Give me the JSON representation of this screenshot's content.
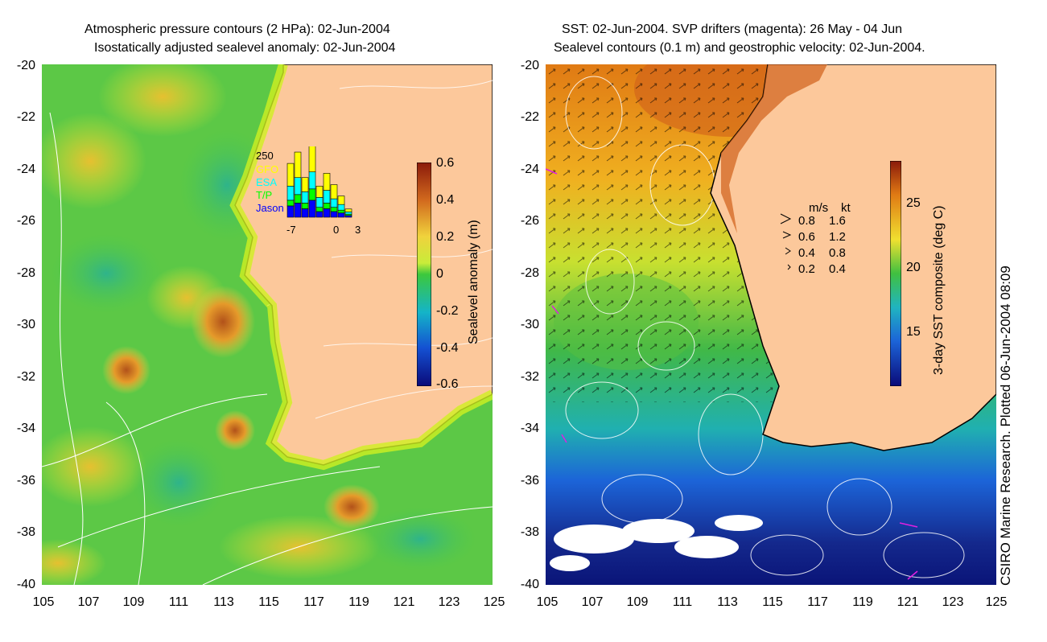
{
  "left_panel": {
    "title_line1": "Atmospheric pressure contours (2 HPa): 02-Jun-2004",
    "title_line2": "Isostatically adjusted sealevel anomaly: 02-Jun-2004",
    "y_ticks": [
      "-20",
      "-22",
      "-24",
      "-26",
      "-28",
      "-30",
      "-32",
      "-34",
      "-36",
      "-38",
      "-40"
    ],
    "x_ticks": [
      "105",
      "107",
      "109",
      "111",
      "113",
      "115",
      "117",
      "119",
      "121",
      "123",
      "125"
    ],
    "colorbar": {
      "label": "Sealevel anomaly (m)",
      "ticks": [
        "0.6",
        "0.4",
        "0.2",
        "0",
        "-0.2",
        "-0.4",
        "-0.6"
      ]
    },
    "inset": {
      "ymax_label": "250",
      "legend": [
        "GFO",
        "ESA",
        "T/P",
        "Jason"
      ],
      "legend_colors": [
        "#ffff00",
        "#00ffff",
        "#00ff00",
        "#0000ff"
      ],
      "x_ticks": [
        "-7",
        "0",
        "3"
      ],
      "stacks": [
        [
          80,
          50,
          20,
          40
        ],
        [
          90,
          60,
          30,
          50
        ],
        [
          50,
          40,
          20,
          30
        ],
        [
          100,
          60,
          40,
          60
        ],
        [
          40,
          35,
          15,
          20
        ],
        [
          60,
          45,
          20,
          30
        ],
        [
          50,
          30,
          15,
          20
        ],
        [
          30,
          20,
          10,
          15
        ],
        [
          10,
          8,
          5,
          6
        ]
      ]
    }
  },
  "right_panel": {
    "title_line1": "SST: 02-Jun-2004. SVP drifters (magenta): 26 May - 04 Jun",
    "title_line2": "Sealevel contours (0.1 m) and geostrophic velocity: 02-Jun-2004.",
    "y_ticks": [
      "-20",
      "-22",
      "-24",
      "-26",
      "-28",
      "-30",
      "-32",
      "-34",
      "-36",
      "-38",
      "-40"
    ],
    "x_ticks": [
      "105",
      "107",
      "109",
      "111",
      "113",
      "115",
      "117",
      "119",
      "121",
      "123",
      "125"
    ],
    "colorbar": {
      "label": "3-day SST composite (deg C)",
      "ticks": [
        "25",
        "20",
        "15"
      ]
    },
    "speed_legend": {
      "header_ms": "m/s",
      "header_kt": "kt",
      "rows": [
        {
          "ms": "0.8",
          "kt": "1.6"
        },
        {
          "ms": "0.6",
          "kt": "1.2"
        },
        {
          "ms": "0.4",
          "kt": "0.8"
        },
        {
          "ms": "0.2",
          "kt": "0.4"
        }
      ]
    }
  },
  "credit": "CSIRO Marine Research. Plotted 06-Jun-2004 08:09",
  "colors": {
    "land": "#fcc89b",
    "coast": "#000000",
    "contour": "#ffffff"
  }
}
